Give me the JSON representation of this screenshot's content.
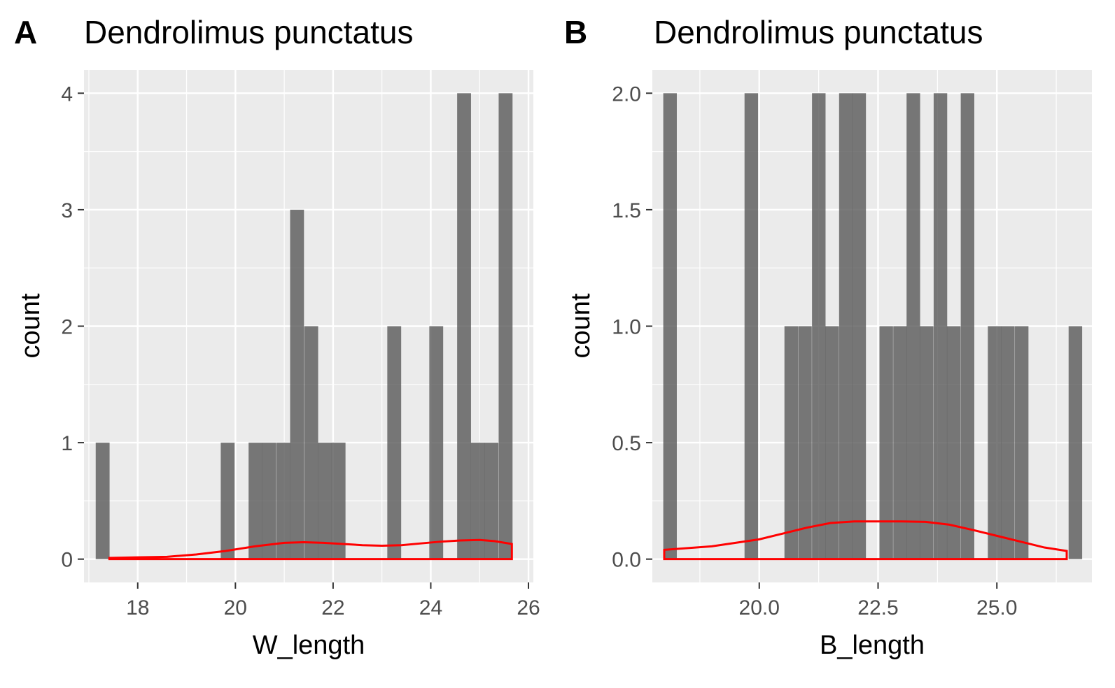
{
  "chart_data": [
    {
      "panel_label": "A",
      "type": "bar",
      "title": "Dendrolimus punctatus",
      "xlabel": "W_length",
      "ylabel": "count",
      "xlim": [
        16.9,
        26.1
      ],
      "ylim": [
        -0.2,
        4.2
      ],
      "x_ticks": [
        18,
        20,
        22,
        24,
        26
      ],
      "x_tick_labels": [
        "18",
        "20",
        "22",
        "24",
        "26"
      ],
      "y_ticks": [
        0,
        1,
        2,
        3,
        4
      ],
      "y_tick_labels": [
        "0",
        "1",
        "2",
        "3",
        "4"
      ],
      "grid": true,
      "bin_width": 0.284,
      "bins": [
        {
          "start": 17.14,
          "count": 1
        },
        {
          "start": 19.7,
          "count": 1
        },
        {
          "start": 20.27,
          "count": 1
        },
        {
          "start": 20.55,
          "count": 1
        },
        {
          "start": 20.84,
          "count": 1
        },
        {
          "start": 21.12,
          "count": 3
        },
        {
          "start": 21.41,
          "count": 2
        },
        {
          "start": 21.69,
          "count": 1
        },
        {
          "start": 21.97,
          "count": 1
        },
        {
          "start": 23.11,
          "count": 2
        },
        {
          "start": 23.97,
          "count": 2
        },
        {
          "start": 24.54,
          "count": 4
        },
        {
          "start": 24.82,
          "count": 1
        },
        {
          "start": 25.1,
          "count": 1
        },
        {
          "start": 25.39,
          "count": 4
        }
      ],
      "density_curve": {
        "x": [
          17.42,
          18.0,
          18.6,
          19.2,
          19.8,
          20.4,
          21.0,
          21.4,
          21.8,
          22.2,
          22.6,
          23.0,
          23.4,
          23.8,
          24.2,
          24.6,
          25.0,
          25.3,
          25.66
        ],
        "y": [
          0.01,
          0.015,
          0.02,
          0.04,
          0.07,
          0.11,
          0.14,
          0.145,
          0.14,
          0.13,
          0.12,
          0.115,
          0.12,
          0.135,
          0.15,
          0.16,
          0.165,
          0.155,
          0.13
        ]
      }
    },
    {
      "panel_label": "B",
      "type": "bar",
      "title": "Dendrolimus punctatus",
      "xlabel": "B_length",
      "ylabel": "count",
      "xlim": [
        17.75,
        27.0
      ],
      "ylim": [
        -0.1,
        2.1
      ],
      "x_ticks": [
        20.0,
        22.5,
        25.0
      ],
      "x_tick_labels": [
        "20.0",
        "22.5",
        "25.0"
      ],
      "y_ticks": [
        0.0,
        0.5,
        1.0,
        1.5,
        2.0
      ],
      "y_tick_labels": [
        "0.0",
        "0.5",
        "1.0",
        "1.5",
        "2.0"
      ],
      "grid": true,
      "bin_width": 0.285,
      "bins": [
        {
          "start": 17.98,
          "count": 2
        },
        {
          "start": 19.69,
          "count": 2
        },
        {
          "start": 20.53,
          "count": 1
        },
        {
          "start": 20.82,
          "count": 1
        },
        {
          "start": 21.11,
          "count": 2
        },
        {
          "start": 21.39,
          "count": 1
        },
        {
          "start": 21.68,
          "count": 2
        },
        {
          "start": 21.96,
          "count": 2
        },
        {
          "start": 22.53,
          "count": 1
        },
        {
          "start": 22.82,
          "count": 1
        },
        {
          "start": 23.1,
          "count": 2
        },
        {
          "start": 23.38,
          "count": 1
        },
        {
          "start": 23.67,
          "count": 2
        },
        {
          "start": 23.95,
          "count": 1
        },
        {
          "start": 24.24,
          "count": 2
        },
        {
          "start": 24.81,
          "count": 1
        },
        {
          "start": 25.09,
          "count": 1
        },
        {
          "start": 25.38,
          "count": 1
        },
        {
          "start": 26.51,
          "count": 1
        }
      ],
      "density_curve": {
        "x": [
          18.0,
          19.0,
          20.0,
          20.5,
          21.0,
          21.5,
          22.0,
          22.5,
          23.0,
          23.5,
          24.0,
          24.5,
          25.0,
          25.5,
          26.0,
          26.47
        ],
        "y": [
          0.04,
          0.055,
          0.085,
          0.11,
          0.135,
          0.155,
          0.162,
          0.162,
          0.162,
          0.16,
          0.148,
          0.125,
          0.1,
          0.075,
          0.05,
          0.035
        ]
      }
    }
  ]
}
